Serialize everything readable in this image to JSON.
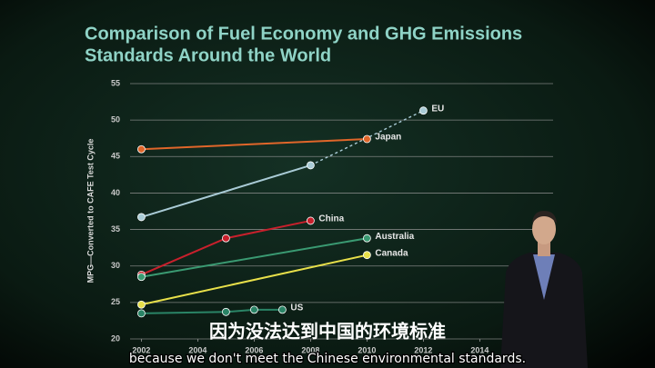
{
  "chart_data": {
    "type": "line",
    "title": [
      "Comparison of Fuel Economy and GHG Emissions",
      "Standards Around the World"
    ],
    "y_label": "MPG—Converted to CAFE Test Cycle",
    "xlim": [
      2001.6,
      2016.6
    ],
    "xticks": [
      2002,
      2004,
      2006,
      2008,
      2010,
      2012,
      2014
    ],
    "ylim": [
      20,
      55
    ],
    "yticks": [
      20,
      25,
      30,
      35,
      40,
      45,
      50,
      55
    ],
    "grid": true,
    "series": [
      {
        "name": "EU",
        "color": "#a9cbd6",
        "x": [
          2002,
          2008,
          2012
        ],
        "values": [
          36.7,
          43.8,
          51.3
        ],
        "projected_from": 2008
      },
      {
        "name": "Japan",
        "color": "#e0662a",
        "x": [
          2002,
          2010
        ],
        "values": [
          46.0,
          47.4
        ]
      },
      {
        "name": "China",
        "color": "#c8202c",
        "x": [
          2002,
          2005,
          2008
        ],
        "values": [
          28.8,
          33.8,
          36.2
        ]
      },
      {
        "name": "Australia",
        "color": "#3a9a72",
        "x": [
          2002,
          2010
        ],
        "values": [
          28.5,
          33.8
        ]
      },
      {
        "name": "Canada",
        "color": "#e8e04a",
        "x": [
          2002,
          2010
        ],
        "values": [
          24.7,
          31.5
        ]
      },
      {
        "name": "US",
        "color": "#2a8466",
        "x": [
          2002,
          2005,
          2006,
          2007
        ],
        "values": [
          23.5,
          23.7,
          24.0,
          24.0
        ]
      }
    ]
  },
  "subtitles": {
    "chinese": "因为没法达到中国的环境标准",
    "english": "because we don't meet the Chinese environmental standards."
  }
}
